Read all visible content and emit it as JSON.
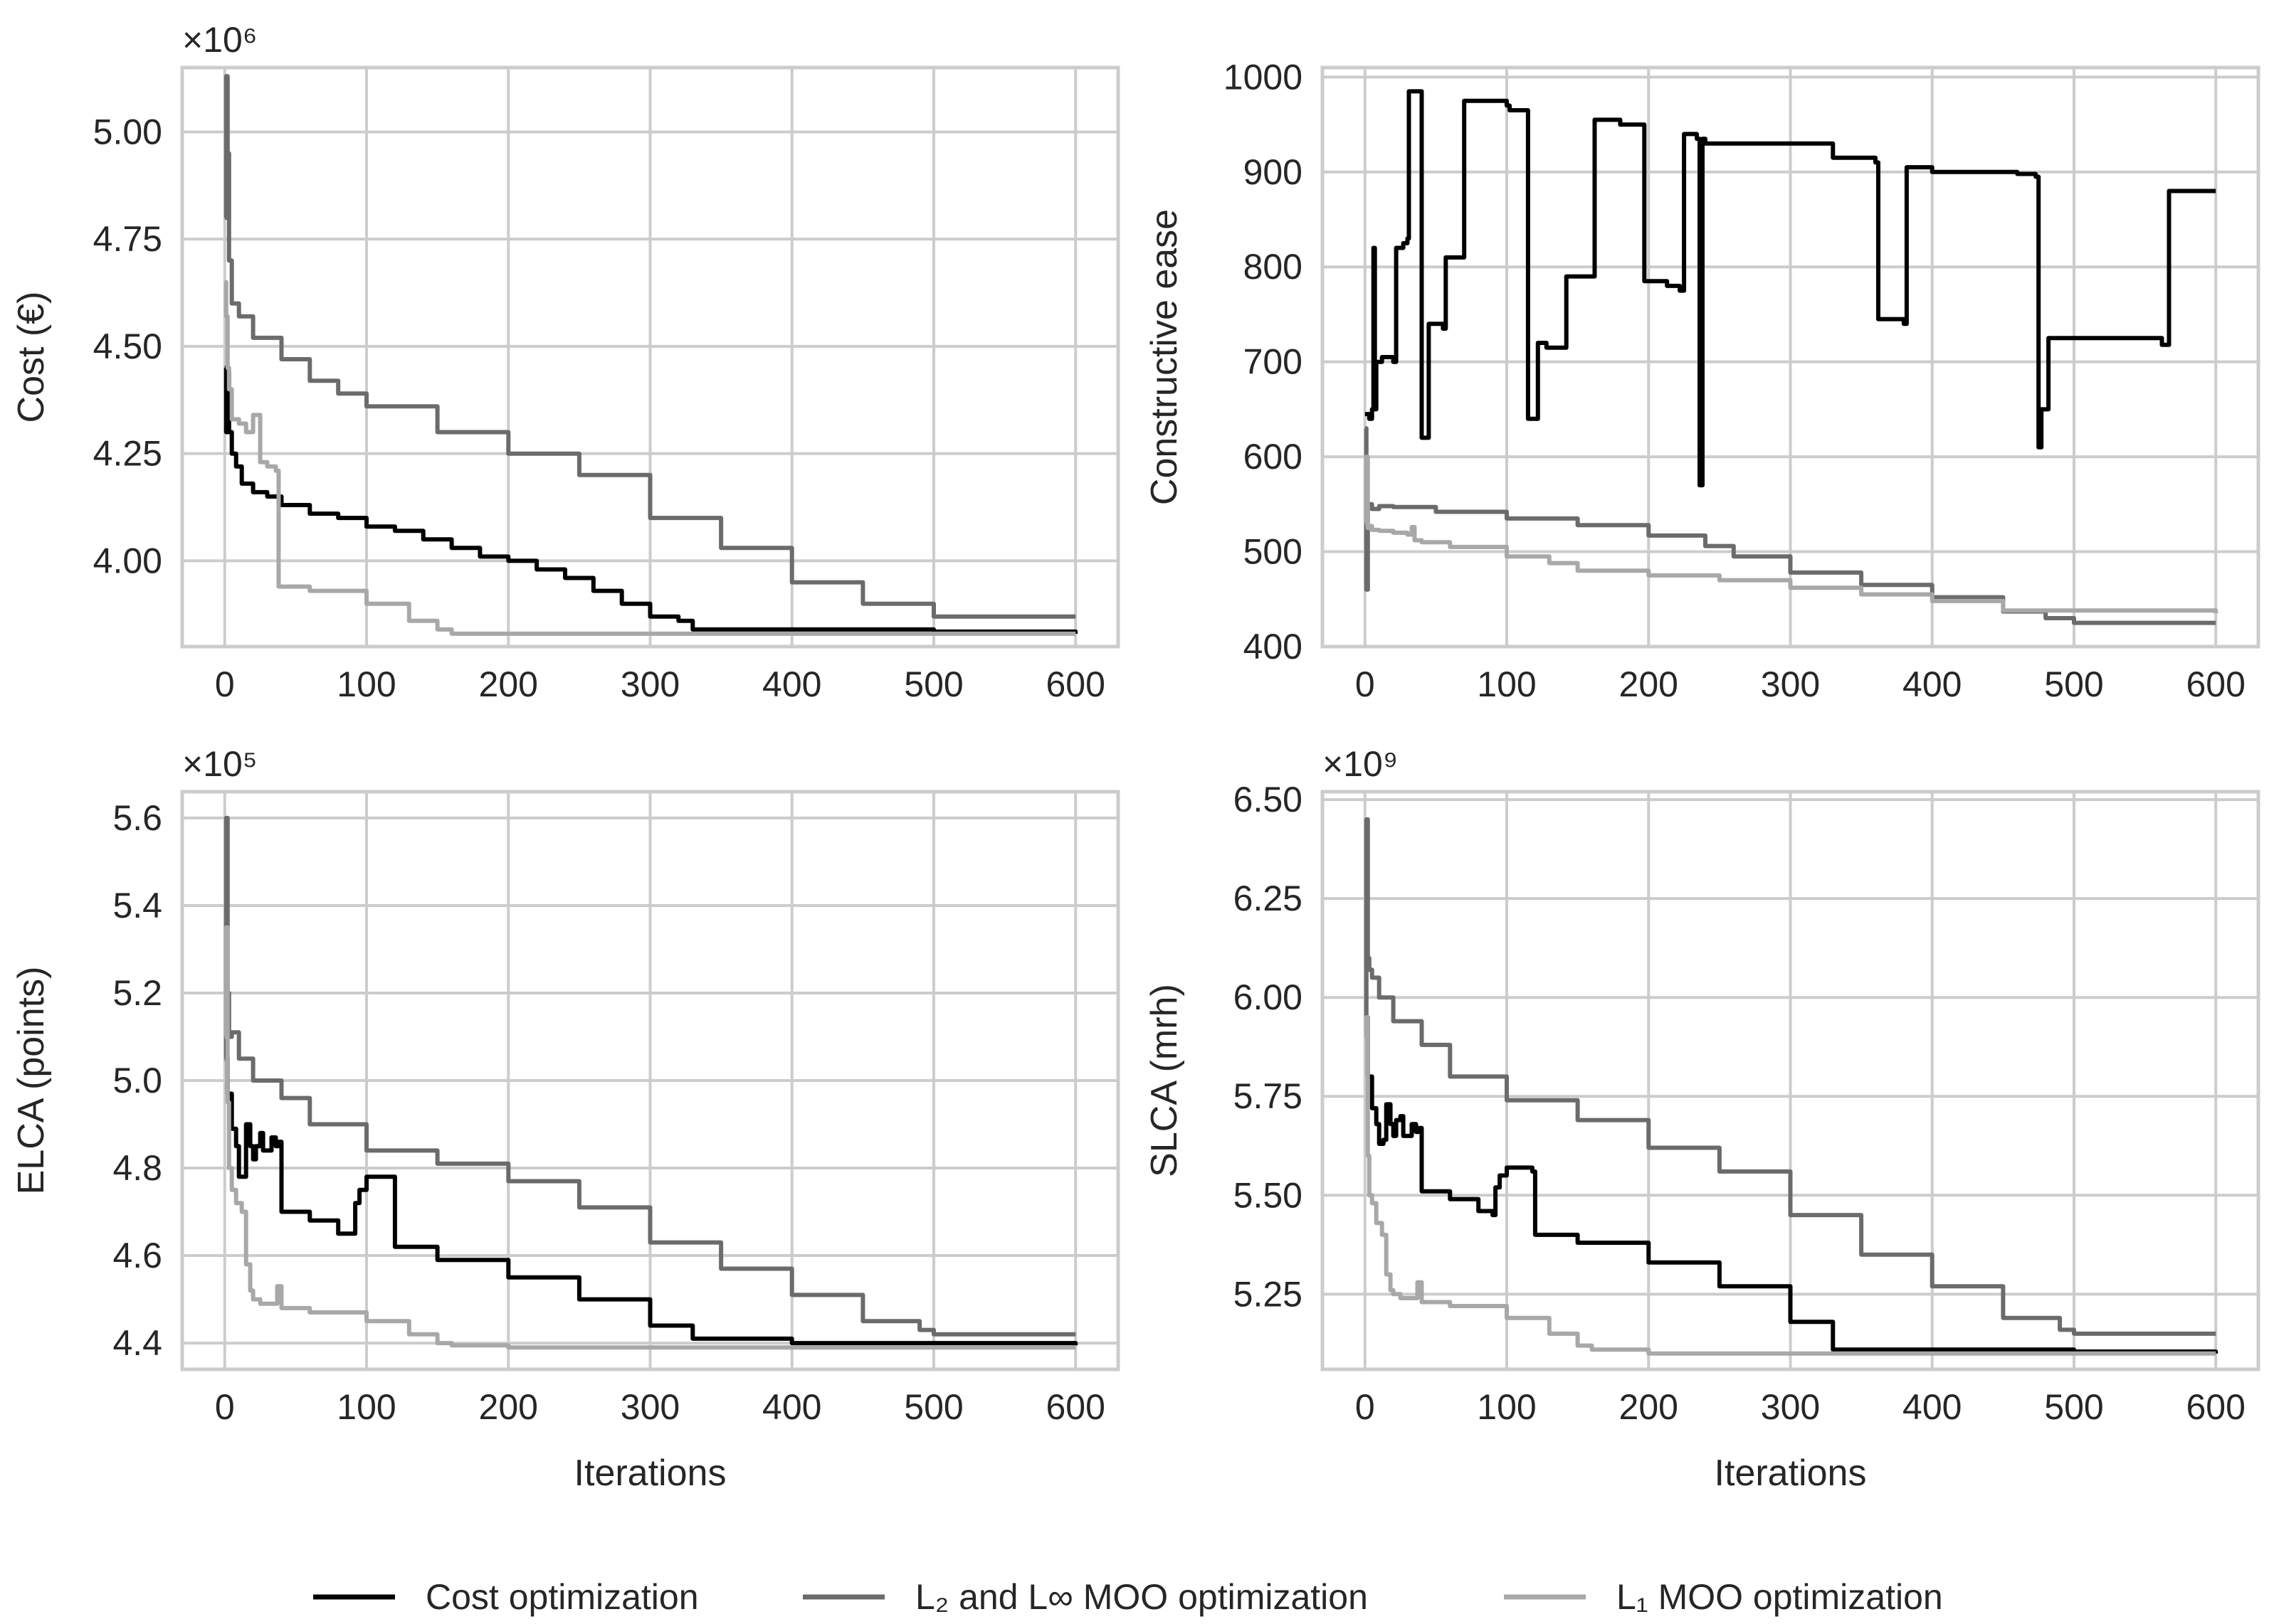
{
  "legend": {
    "items": [
      {
        "label": "Cost optimization",
        "color": "#000000"
      },
      {
        "label": "L₂ and L∞ MOO optimization",
        "color": "#6b6b6b"
      },
      {
        "label": "L₁ MOO optimization",
        "color": "#a8a8a8"
      }
    ]
  },
  "chart_data": [
    {
      "type": "line",
      "title": "",
      "xlabel": "",
      "ylabel": "Cost (€)",
      "offset_label": "×10⁶",
      "xlim": [
        -30,
        630
      ],
      "ylim": [
        3.8,
        5.15
      ],
      "xticks": [
        0,
        100,
        200,
        300,
        400,
        500,
        600
      ],
      "xtick_labels": [
        "0",
        "100",
        "200",
        "300",
        "400",
        "500",
        "600"
      ],
      "yticks": [
        4.0,
        4.25,
        4.5,
        4.75,
        5.0
      ],
      "ytick_labels": [
        "4.00",
        "4.25",
        "4.50",
        "4.75",
        "5.00"
      ],
      "grid": true,
      "series": [
        {
          "name": "Cost optimization",
          "color": "#000000",
          "x": [
            0,
            1,
            2,
            3,
            5,
            8,
            12,
            20,
            30,
            40,
            60,
            80,
            100,
            120,
            140,
            160,
            180,
            200,
            220,
            240,
            260,
            280,
            300,
            320,
            330,
            400,
            500,
            600
          ],
          "y": [
            4.45,
            4.3,
            4.44,
            4.3,
            4.25,
            4.22,
            4.18,
            4.16,
            4.15,
            4.13,
            4.11,
            4.1,
            4.08,
            4.07,
            4.05,
            4.03,
            4.01,
            4.0,
            3.98,
            3.96,
            3.93,
            3.9,
            3.87,
            3.86,
            3.84,
            3.84,
            3.835,
            3.83
          ]
        },
        {
          "name": "L₂ and L∞ MOO optimization",
          "color": "#6b6b6b",
          "x": [
            0,
            1,
            2,
            3,
            5,
            10,
            20,
            40,
            60,
            80,
            100,
            150,
            200,
            250,
            300,
            350,
            400,
            450,
            480,
            500,
            600
          ],
          "y": [
            4.8,
            5.13,
            4.95,
            4.7,
            4.6,
            4.57,
            4.52,
            4.47,
            4.42,
            4.39,
            4.36,
            4.3,
            4.25,
            4.2,
            4.1,
            4.03,
            3.95,
            3.9,
            3.9,
            3.87,
            3.87
          ]
        },
        {
          "name": "L₁ MOO optimization",
          "color": "#a8a8a8",
          "x": [
            0,
            1,
            2,
            3,
            5,
            10,
            15,
            20,
            25,
            30,
            36,
            38,
            60,
            100,
            130,
            150,
            160,
            200,
            300,
            600
          ],
          "y": [
            4.65,
            4.57,
            4.45,
            4.4,
            4.33,
            4.32,
            4.3,
            4.34,
            4.23,
            4.22,
            4.21,
            3.94,
            3.93,
            3.9,
            3.86,
            3.84,
            3.83,
            3.83,
            3.83,
            3.83
          ]
        }
      ]
    },
    {
      "type": "line",
      "title": "",
      "xlabel": "",
      "ylabel": "Constructive ease",
      "offset_label": "",
      "xlim": [
        -30,
        630
      ],
      "ylim": [
        400,
        1010
      ],
      "xticks": [
        0,
        100,
        200,
        300,
        400,
        500,
        600
      ],
      "xtick_labels": [
        "0",
        "100",
        "200",
        "300",
        "400",
        "500",
        "600"
      ],
      "yticks": [
        400,
        500,
        600,
        700,
        800,
        900,
        1000
      ],
      "ytick_labels": [
        "400",
        "500",
        "600",
        "700",
        "800",
        "900",
        "1000"
      ],
      "grid": true,
      "series": [
        {
          "name": "Cost optimization",
          "color": "#000000",
          "x": [
            0,
            3,
            5,
            6,
            7,
            8,
            10,
            12,
            20,
            22,
            25,
            27,
            30,
            31,
            38,
            40,
            42,
            45,
            55,
            57,
            68,
            70,
            100,
            102,
            114,
            115,
            120,
            122,
            125,
            128,
            140,
            142,
            160,
            162,
            178,
            180,
            195,
            197,
            213,
            222,
            225,
            234,
            236,
            238,
            240,
            280,
            330,
            360,
            362,
            378,
            380,
            382,
            400,
            440,
            460,
            473,
            475,
            477,
            480,
            482,
            560,
            562,
            565,
            567,
            600
          ],
          "y": [
            645,
            640,
            650,
            820,
            650,
            700,
            700,
            705,
            700,
            820,
            820,
            825,
            830,
            985,
            985,
            620,
            620,
            740,
            735,
            810,
            810,
            975,
            970,
            965,
            965,
            640,
            640,
            720,
            720,
            715,
            715,
            790,
            790,
            955,
            955,
            950,
            950,
            785,
            780,
            775,
            940,
            935,
            570,
            935,
            930,
            930,
            915,
            910,
            745,
            745,
            740,
            905,
            900,
            900,
            898,
            895,
            610,
            650,
            650,
            725,
            725,
            718,
            718,
            880,
            880
          ]
        },
        {
          "name": "L₂ and L∞ MOO optimization",
          "color": "#6b6b6b",
          "x": [
            0,
            1,
            2,
            3,
            5,
            10,
            20,
            50,
            100,
            150,
            200,
            240,
            260,
            300,
            350,
            400,
            450,
            480,
            500,
            600
          ],
          "y": [
            630,
            460,
            545,
            550,
            545,
            548,
            547,
            542,
            535,
            528,
            517,
            506,
            495,
            478,
            465,
            452,
            437,
            430,
            425,
            425
          ]
        },
        {
          "name": "L₁ MOO optimization",
          "color": "#a8a8a8",
          "x": [
            0,
            1,
            2,
            3,
            5,
            10,
            20,
            30,
            33,
            35,
            40,
            60,
            100,
            130,
            150,
            200,
            250,
            300,
            350,
            400,
            450,
            600
          ],
          "y": [
            530,
            600,
            525,
            527,
            523,
            522,
            520,
            518,
            526,
            512,
            510,
            505,
            495,
            488,
            480,
            475,
            470,
            462,
            455,
            448,
            438,
            435
          ]
        }
      ]
    },
    {
      "type": "line",
      "title": "",
      "xlabel": "Iterations",
      "ylabel": "ELCA (points)",
      "offset_label": "×10⁵",
      "xlim": [
        -30,
        630
      ],
      "ylim": [
        4.34,
        5.66
      ],
      "xticks": [
        0,
        100,
        200,
        300,
        400,
        500,
        600
      ],
      "xtick_labels": [
        "0",
        "100",
        "200",
        "300",
        "400",
        "500",
        "600"
      ],
      "yticks": [
        4.4,
        4.6,
        4.8,
        5.0,
        5.2,
        5.4,
        5.6
      ],
      "ytick_labels": [
        "4.4",
        "4.6",
        "4.8",
        "5.0",
        "5.2",
        "5.4",
        "5.6"
      ],
      "grid": true,
      "series": [
        {
          "name": "Cost optimization",
          "color": "#000000",
          "x": [
            0,
            2,
            5,
            8,
            10,
            13,
            15,
            18,
            20,
            22,
            25,
            27,
            30,
            33,
            36,
            38,
            40,
            60,
            80,
            90,
            92,
            95,
            100,
            110,
            118,
            120,
            150,
            200,
            250,
            300,
            330,
            400,
            500,
            600
          ],
          "y": [
            5.05,
            4.97,
            4.89,
            4.85,
            4.78,
            4.78,
            4.9,
            4.85,
            4.82,
            4.85,
            4.88,
            4.84,
            4.84,
            4.87,
            4.85,
            4.86,
            4.7,
            4.68,
            4.65,
            4.65,
            4.72,
            4.75,
            4.78,
            4.78,
            4.78,
            4.62,
            4.59,
            4.55,
            4.5,
            4.44,
            4.41,
            4.4,
            4.4,
            4.395
          ]
        },
        {
          "name": "L₂ and L∞ MOO optimization",
          "color": "#6b6b6b",
          "x": [
            0,
            1,
            2,
            3,
            5,
            10,
            20,
            40,
            60,
            100,
            150,
            200,
            250,
            300,
            350,
            400,
            450,
            490,
            500,
            600
          ],
          "y": [
            5.05,
            5.6,
            5.2,
            5.1,
            5.11,
            5.05,
            5.0,
            4.96,
            4.9,
            4.84,
            4.81,
            4.77,
            4.71,
            4.63,
            4.57,
            4.51,
            4.45,
            4.43,
            4.42,
            4.42
          ]
        },
        {
          "name": "L₁ MOO optimization",
          "color": "#a8a8a8",
          "x": [
            0,
            1,
            2,
            3,
            5,
            8,
            12,
            15,
            18,
            20,
            25,
            35,
            37,
            40,
            60,
            100,
            130,
            150,
            160,
            200,
            300,
            600
          ],
          "y": [
            5.1,
            5.35,
            4.95,
            4.8,
            4.75,
            4.72,
            4.7,
            4.58,
            4.52,
            4.5,
            4.49,
            4.49,
            4.53,
            4.48,
            4.47,
            4.45,
            4.42,
            4.4,
            4.395,
            4.39,
            4.39,
            4.39
          ]
        }
      ]
    },
    {
      "type": "line",
      "title": "",
      "xlabel": "Iterations",
      "ylabel": "SLCA (mrh)",
      "offset_label": "×10⁹",
      "xlim": [
        -30,
        630
      ],
      "ylim": [
        5.06,
        6.52
      ],
      "xticks": [
        0,
        100,
        200,
        300,
        400,
        500,
        600
      ],
      "xtick_labels": [
        "0",
        "100",
        "200",
        "300",
        "400",
        "500",
        "600"
      ],
      "yticks": [
        5.25,
        5.5,
        5.75,
        6.0,
        6.25,
        6.5
      ],
      "ytick_labels": [
        "5.25",
        "5.50",
        "5.75",
        "6.00",
        "6.25",
        "6.50"
      ],
      "grid": true,
      "series": [
        {
          "name": "Cost optimization",
          "color": "#000000",
          "x": [
            0,
            2,
            5,
            8,
            10,
            13,
            15,
            18,
            20,
            22,
            25,
            27,
            30,
            33,
            36,
            38,
            40,
            60,
            80,
            90,
            92,
            95,
            100,
            110,
            118,
            120,
            150,
            200,
            250,
            300,
            330,
            400,
            500,
            600
          ],
          "y": [
            5.95,
            5.8,
            5.72,
            5.68,
            5.63,
            5.64,
            5.73,
            5.68,
            5.65,
            5.69,
            5.7,
            5.65,
            5.65,
            5.68,
            5.66,
            5.67,
            5.51,
            5.49,
            5.46,
            5.45,
            5.52,
            5.55,
            5.57,
            5.57,
            5.56,
            5.4,
            5.38,
            5.33,
            5.27,
            5.18,
            5.11,
            5.11,
            5.105,
            5.1
          ]
        },
        {
          "name": "L₂ and L∞ MOO optimization",
          "color": "#6b6b6b",
          "x": [
            0,
            1,
            2,
            3,
            5,
            10,
            20,
            40,
            60,
            100,
            150,
            200,
            250,
            300,
            350,
            400,
            450,
            490,
            500,
            600
          ],
          "y": [
            5.95,
            6.45,
            6.1,
            6.07,
            6.05,
            6.0,
            5.94,
            5.88,
            5.8,
            5.74,
            5.69,
            5.62,
            5.56,
            5.45,
            5.35,
            5.27,
            5.19,
            5.16,
            5.15,
            5.15
          ]
        },
        {
          "name": "L₁ MOO optimization",
          "color": "#a8a8a8",
          "x": [
            0,
            1,
            2,
            3,
            5,
            8,
            12,
            15,
            18,
            20,
            25,
            35,
            37,
            40,
            60,
            100,
            130,
            150,
            160,
            200,
            300,
            600
          ],
          "y": [
            5.9,
            5.95,
            5.6,
            5.5,
            5.48,
            5.43,
            5.4,
            5.3,
            5.26,
            5.25,
            5.24,
            5.24,
            5.28,
            5.23,
            5.22,
            5.19,
            5.15,
            5.12,
            5.11,
            5.1,
            5.1,
            5.1
          ]
        }
      ]
    }
  ]
}
